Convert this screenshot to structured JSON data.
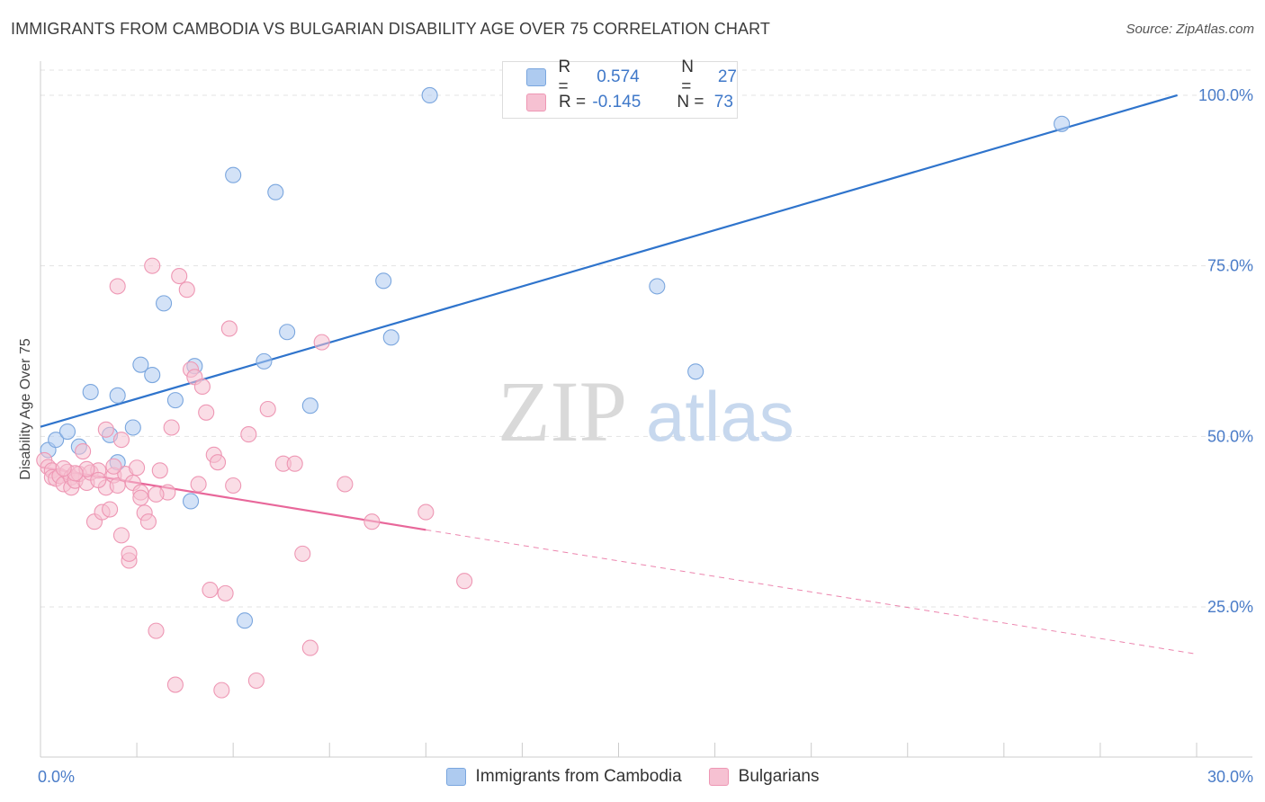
{
  "title": "IMMIGRANTS FROM CAMBODIA VS BULGARIAN DISABILITY AGE OVER 75 CORRELATION CHART",
  "source": "Source: ZipAtlas.com",
  "watermark": {
    "zip": "ZIP",
    "atlas": "atlas"
  },
  "colors": {
    "blue_fill": "#aecbf0",
    "blue_stroke": "#7aa6de",
    "blue_line": "#2f74cc",
    "pink_fill": "#f6c1d2",
    "pink_stroke": "#ee97b4",
    "pink_line": "#e8679a",
    "tick_text": "#4a7cc8",
    "grid": "#e3e3e3"
  },
  "stats": [
    {
      "r_label": "R =",
      "r_value": "0.574",
      "n_label": "N =",
      "n_value": "27",
      "color": "#aecbf0"
    },
    {
      "r_label": "R =",
      "r_value": "-0.145",
      "n_label": "N =",
      "n_value": "73",
      "color": "#f6c1d2"
    }
  ],
  "legend": [
    {
      "label": "Immigrants from Cambodia",
      "color": "#aecbf0"
    },
    {
      "label": "Bulgarians",
      "color": "#f6c1d2"
    }
  ],
  "chart_data": {
    "type": "scatter",
    "title": "IMMIGRANTS FROM CAMBODIA VS BULGARIAN DISABILITY AGE OVER 75 CORRELATION CHART",
    "xlabel": "",
    "ylabel": "Disability Age Over 75",
    "xlim": [
      0,
      30
    ],
    "ylim": [
      3,
      105
    ],
    "x_tick_labels": [
      "0.0%",
      "30.0%"
    ],
    "y_ticks": [
      25,
      50,
      75,
      100
    ],
    "y_tick_labels": [
      "25.0%",
      "50.0%",
      "75.0%",
      "100.0%"
    ],
    "grid": true,
    "legend_position": "bottom",
    "series": [
      {
        "name": "Immigrants from Cambodia",
        "points": [
          [
            0.2,
            48.0
          ],
          [
            0.4,
            49.5
          ],
          [
            0.7,
            50.7
          ],
          [
            1.0,
            48.5
          ],
          [
            1.3,
            56.5
          ],
          [
            1.8,
            50.2
          ],
          [
            2.0,
            46.2
          ],
          [
            2.0,
            56.0
          ],
          [
            2.4,
            51.3
          ],
          [
            2.6,
            60.5
          ],
          [
            2.9,
            59.0
          ],
          [
            3.2,
            69.5
          ],
          [
            3.5,
            55.3
          ],
          [
            3.9,
            40.5
          ],
          [
            4.0,
            60.3
          ],
          [
            5.0,
            88.3
          ],
          [
            5.3,
            23.0
          ],
          [
            5.8,
            61.0
          ],
          [
            6.1,
            85.8
          ],
          [
            6.4,
            65.3
          ],
          [
            7.0,
            54.5
          ],
          [
            8.9,
            72.8
          ],
          [
            9.1,
            64.5
          ],
          [
            10.1,
            100.0
          ],
          [
            16.0,
            72.0
          ],
          [
            17.0,
            59.5
          ],
          [
            26.5,
            95.8
          ]
        ],
        "trend": {
          "x": [
            0,
            29.5
          ],
          "y": [
            51.4,
            100.0
          ]
        }
      },
      {
        "name": "Bulgarians",
        "points": [
          [
            0.1,
            46.5
          ],
          [
            0.2,
            45.5
          ],
          [
            0.3,
            45.0
          ],
          [
            0.3,
            44.0
          ],
          [
            0.4,
            43.8
          ],
          [
            0.5,
            44.2
          ],
          [
            0.6,
            43.0
          ],
          [
            0.7,
            44.8
          ],
          [
            0.8,
            44.0
          ],
          [
            0.8,
            42.5
          ],
          [
            0.9,
            43.5
          ],
          [
            1.0,
            44.5
          ],
          [
            1.1,
            47.8
          ],
          [
            1.2,
            43.2
          ],
          [
            1.3,
            44.7
          ],
          [
            1.4,
            37.5
          ],
          [
            1.5,
            45.0
          ],
          [
            1.6,
            38.9
          ],
          [
            1.7,
            42.5
          ],
          [
            1.7,
            51.0
          ],
          [
            1.8,
            39.3
          ],
          [
            1.9,
            44.3
          ],
          [
            2.0,
            72.0
          ],
          [
            2.0,
            42.8
          ],
          [
            2.1,
            49.5
          ],
          [
            2.1,
            35.5
          ],
          [
            2.2,
            44.5
          ],
          [
            2.3,
            31.8
          ],
          [
            2.3,
            32.8
          ],
          [
            2.4,
            43.2
          ],
          [
            2.5,
            45.4
          ],
          [
            2.6,
            41.8
          ],
          [
            2.6,
            41.0
          ],
          [
            2.7,
            38.8
          ],
          [
            2.8,
            37.5
          ],
          [
            2.9,
            75.0
          ],
          [
            3.0,
            21.5
          ],
          [
            3.1,
            45.0
          ],
          [
            3.3,
            41.8
          ],
          [
            3.4,
            51.3
          ],
          [
            3.5,
            13.6
          ],
          [
            3.6,
            73.5
          ],
          [
            3.8,
            71.5
          ],
          [
            3.9,
            59.8
          ],
          [
            4.0,
            58.7
          ],
          [
            4.1,
            43.0
          ],
          [
            4.2,
            57.3
          ],
          [
            4.3,
            53.5
          ],
          [
            4.4,
            27.5
          ],
          [
            4.5,
            47.3
          ],
          [
            4.6,
            46.2
          ],
          [
            4.7,
            12.8
          ],
          [
            4.8,
            27.0
          ],
          [
            4.9,
            65.8
          ],
          [
            5.0,
            42.8
          ],
          [
            5.4,
            50.3
          ],
          [
            5.6,
            14.2
          ],
          [
            5.9,
            54.0
          ],
          [
            6.3,
            46.0
          ],
          [
            6.6,
            46.0
          ],
          [
            6.8,
            32.8
          ],
          [
            7.0,
            19.0
          ],
          [
            7.3,
            63.8
          ],
          [
            7.9,
            43.0
          ],
          [
            8.6,
            37.5
          ],
          [
            10.0,
            38.9
          ],
          [
            11.0,
            28.8
          ],
          [
            1.2,
            45.2
          ],
          [
            0.9,
            44.6
          ],
          [
            1.5,
            43.6
          ],
          [
            0.6,
            45.3
          ],
          [
            1.9,
            45.6
          ],
          [
            3.0,
            41.5
          ]
        ],
        "trend": {
          "x": [
            0,
            10.0
          ],
          "y": [
            45.5,
            36.3
          ]
        },
        "trend_dashed": {
          "x": [
            10.0,
            30.0
          ],
          "y": [
            36.3,
            18.1
          ]
        }
      }
    ]
  }
}
